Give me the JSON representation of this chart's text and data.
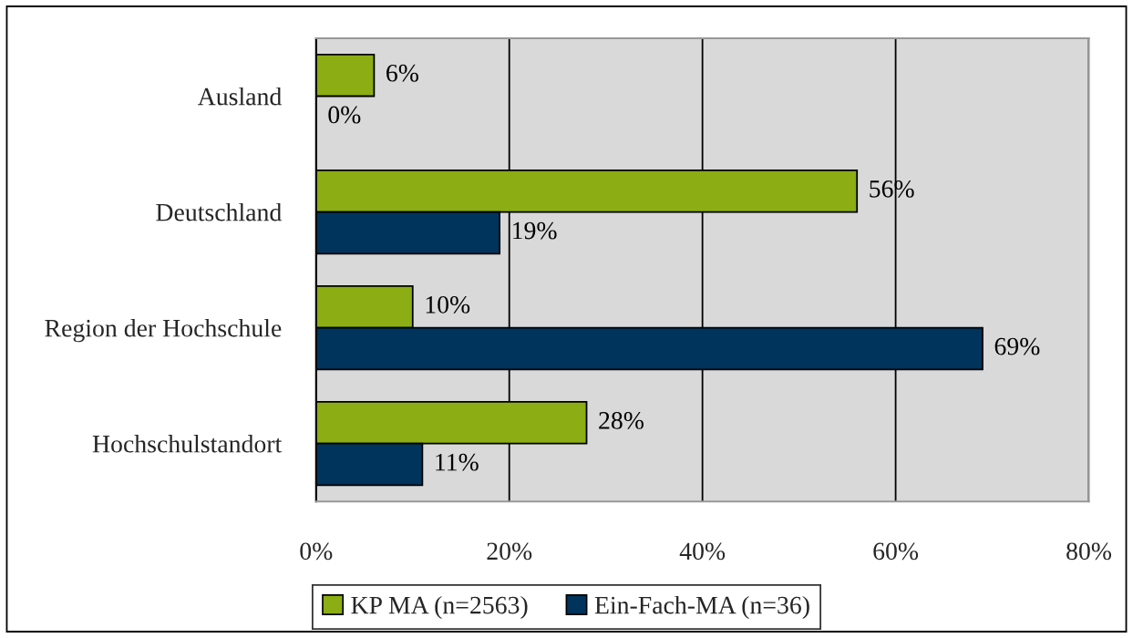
{
  "chart_data": {
    "type": "bar",
    "orientation": "horizontal",
    "categories": [
      "Ausland",
      "Deutschland",
      "Region der Hochschule",
      "Hochschulstandort"
    ],
    "series": [
      {
        "name": "KP MA (n=2563)",
        "color": "#8cad13",
        "values": [
          6,
          56,
          10,
          28
        ],
        "value_labels": [
          "6%",
          "56%",
          "10%",
          "28%"
        ]
      },
      {
        "name": "Ein-Fach-MA (n=36)",
        "color": "#00345c",
        "values": [
          0,
          19,
          69,
          11
        ],
        "value_labels": [
          "0%",
          "19%",
          "69%",
          "11%"
        ]
      }
    ],
    "xlim": [
      0,
      80
    ],
    "xticks": [
      {
        "value": 0,
        "label": "0%"
      },
      {
        "value": 20,
        "label": "20%"
      },
      {
        "value": 40,
        "label": "40%"
      },
      {
        "value": 60,
        "label": "60%"
      },
      {
        "value": 80,
        "label": "80%"
      }
    ],
    "grid": "x",
    "legend": "bottom"
  }
}
